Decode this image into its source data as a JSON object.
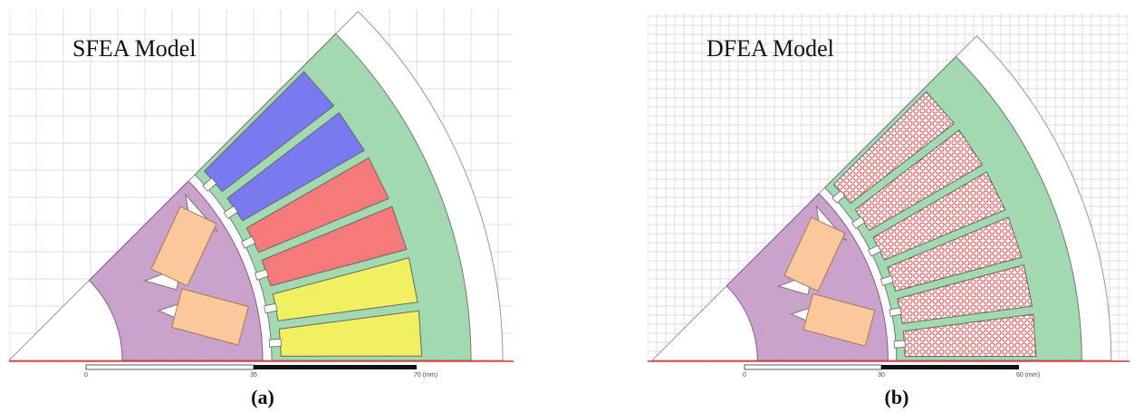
{
  "panels": [
    {
      "title": "SFEA Model",
      "scale": {
        "start": "0",
        "mid": "35",
        "end": "70 (mm)"
      },
      "caption": "(a)"
    },
    {
      "title": "DFEA Model",
      "scale": {
        "start": "0",
        "mid": "30",
        "end": "60 (mm)"
      },
      "caption": "(b)"
    }
  ]
}
